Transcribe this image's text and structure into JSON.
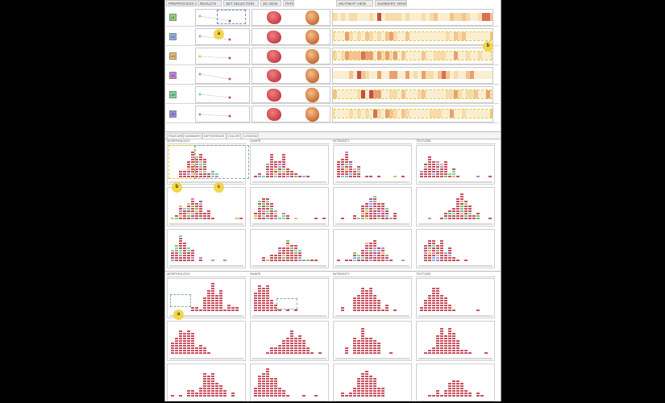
{
  "header": {
    "cols": [
      "PREPROCESS VIEW",
      "RESULTS",
      "SET SELECTION",
      "3D VIEW",
      "PATIENT",
      "HEATMAP VIEW",
      "SUMMARY VIEW"
    ]
  },
  "rows": [
    {
      "id": "c1",
      "color": "#8fd16b"
    },
    {
      "id": "c2",
      "color": "#8aaee0"
    },
    {
      "id": "c3",
      "color": "#e8b86a"
    },
    {
      "id": "c4",
      "color": "#c57fd8"
    },
    {
      "id": "c5",
      "color": "#77d89b"
    },
    {
      "id": "c6",
      "color": "#8f8fe0"
    }
  ],
  "tabs": [
    "FEATURE",
    "SUMMARY",
    "DIFFERENCE",
    "COLOR",
    "LEGEND"
  ],
  "section1": {
    "columns": [
      "MORPHOLOGY",
      "SHAPE",
      "INTENSITY",
      "TEXTURE"
    ]
  },
  "section2": {
    "columns": [
      "MORPHOLOGY",
      "SHAPE",
      "INTENSITY",
      "TEXTURE"
    ]
  },
  "callouts": {
    "a_top": "a",
    "b_top": "b",
    "b_mid": "b",
    "c_mid": "c",
    "a_bot": "a"
  },
  "colors": {
    "bar": "#c8505f",
    "heat_dark": "#c0504a",
    "heat_light": "#f7e0b0",
    "callout": "#f2d64b"
  }
}
